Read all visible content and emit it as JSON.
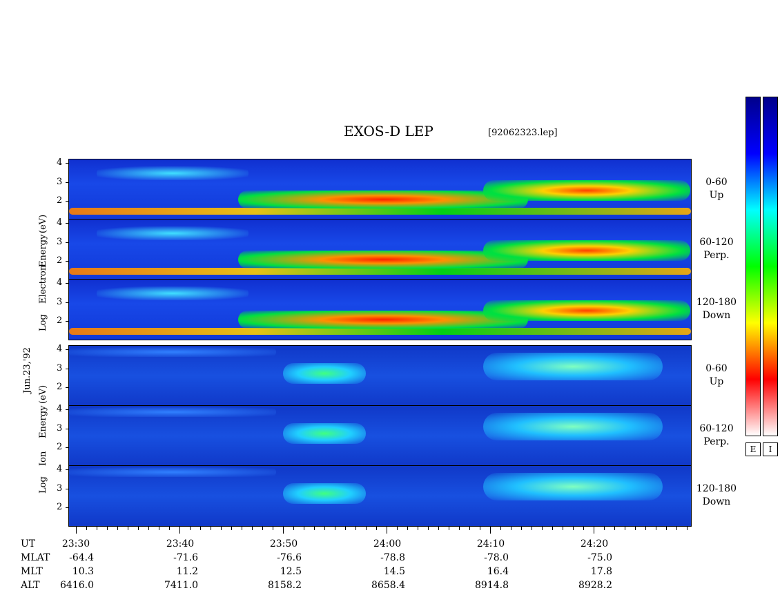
{
  "title": "EXOS-D LEP",
  "file_label": "[92062323.lep]",
  "date_label": "Jun.23,'92",
  "chart_data": {
    "type": "heatmap",
    "title": "EXOS-D LEP",
    "ytick_labels": [
      "2",
      "3",
      "4"
    ],
    "y_axis": {
      "scale": "log",
      "unit": "eV",
      "range": [
        1,
        4.2
      ]
    },
    "groups": [
      {
        "species": "Electron",
        "ylabel_parts": [
          "Log",
          "Electron",
          "Energy",
          "(eV)"
        ],
        "panels": [
          {
            "name": "0-60",
            "direction": "Up"
          },
          {
            "name": "60-120",
            "direction": "Perp."
          },
          {
            "name": "120-180",
            "direction": "Down"
          }
        ]
      },
      {
        "species": "Ion",
        "ylabel_parts": [
          "Log",
          "Ion",
          "Energy",
          "(eV)"
        ],
        "panels": [
          {
            "name": "0-60",
            "direction": "Up"
          },
          {
            "name": "60-120",
            "direction": "Perp."
          },
          {
            "name": "120-180",
            "direction": "Down"
          }
        ]
      }
    ],
    "x_axis": {
      "row_labels": [
        "UT",
        "MLAT",
        "MLT",
        "ALT"
      ],
      "UT": [
        "23:30",
        "23:40",
        "23:50",
        "24:00",
        "24:10",
        "24:20"
      ],
      "MLAT": [
        "-64.4",
        "-71.6",
        "-76.6",
        "-78.8",
        "-78.0",
        "-75.0"
      ],
      "MLT": [
        "10.3",
        "11.2",
        "12.5",
        "14.5",
        "16.4",
        "17.8"
      ],
      "ALT": [
        "6416.0",
        "7411.0",
        "8158.2",
        "8658.4",
        "8914.8",
        "8928.2"
      ]
    },
    "colorbars": [
      {
        "label": "E",
        "colors": [
          "#ffffff",
          "#ff0000",
          "#ffff00",
          "#00ff00",
          "#00ffff",
          "#0000ff",
          "#00008b"
        ]
      },
      {
        "label": "I",
        "colors": [
          "#ffffff",
          "#ff0000",
          "#ffff00",
          "#00ff00",
          "#00ffff",
          "#0000ff",
          "#00008b"
        ]
      }
    ]
  }
}
